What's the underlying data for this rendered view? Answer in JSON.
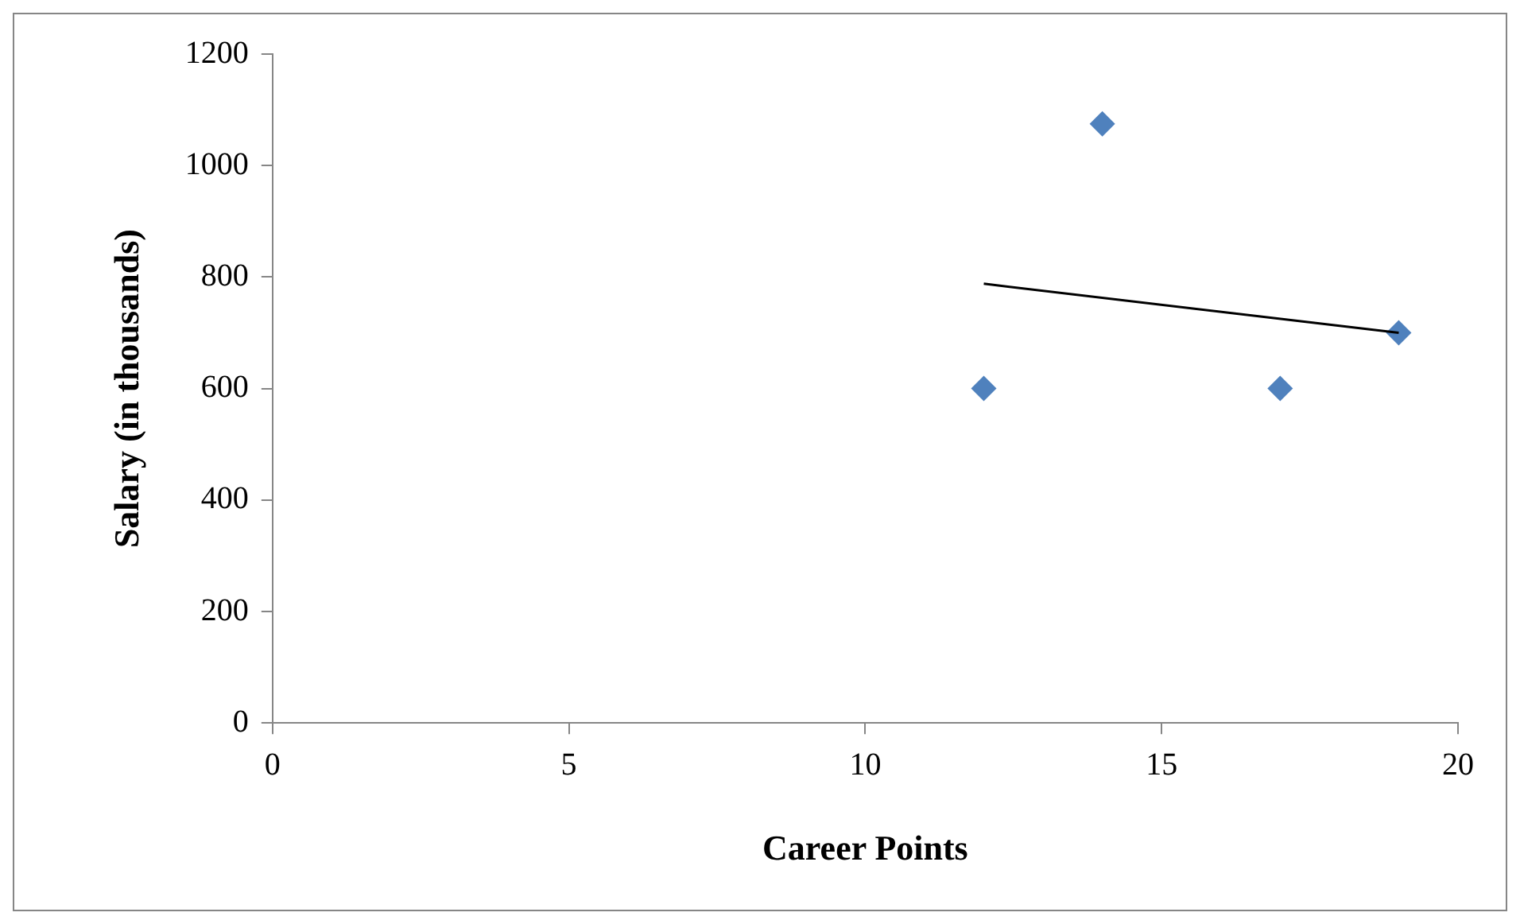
{
  "chart_data": {
    "type": "scatter",
    "xlabel": "Career Points",
    "ylabel": "Salary (in thousands)",
    "xlim": [
      0,
      20
    ],
    "xticks": [
      0,
      5,
      10,
      15,
      20
    ],
    "ylim": [
      0,
      1200
    ],
    "yticks": [
      0,
      200,
      400,
      600,
      800,
      1000,
      1200
    ],
    "grid": false,
    "legend": false,
    "marker": "diamond",
    "series": [
      {
        "type": "scatter",
        "color": "#4f81bd",
        "x": [
          12,
          14,
          17,
          19
        ],
        "values": [
          600,
          1075,
          600,
          700
        ]
      },
      {
        "type": "line",
        "color": "#000000",
        "x": [
          12,
          19
        ],
        "values": [
          788,
          700
        ],
        "marker": "none",
        "line_style": "solid"
      }
    ]
  }
}
